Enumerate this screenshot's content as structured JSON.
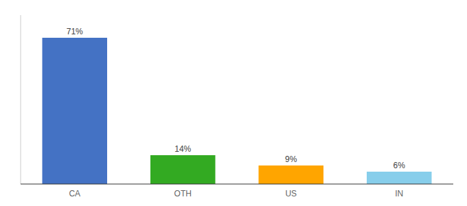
{
  "chart_data": {
    "type": "bar",
    "categories": [
      "CA",
      "OTH",
      "US",
      "IN"
    ],
    "values": [
      71,
      14,
      9,
      6
    ],
    "colors": [
      "#4472c4",
      "#33aa22",
      "#ffa500",
      "#87ceeb"
    ],
    "value_labels": [
      "71%",
      "14%",
      "9%",
      "6%"
    ],
    "data_labels": true,
    "ylim": [
      0,
      82
    ],
    "tick_labels": "x",
    "grid": false
  }
}
